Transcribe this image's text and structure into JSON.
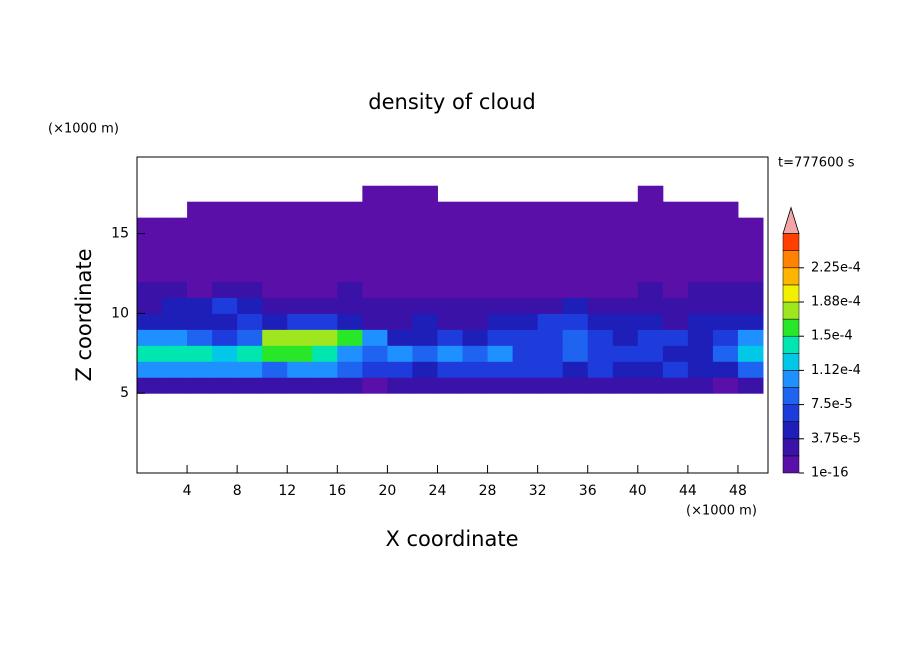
{
  "chart_data": {
    "type": "contour",
    "title": "density of cloud",
    "y_unit": "(×1000 m)",
    "x_unit": "(×1000 m)",
    "time_label": "t=777600 s",
    "xlabel": "X coordinate",
    "ylabel": "Z coordinate",
    "xlim": [
      0,
      50.4
    ],
    "ylim": [
      0,
      19.8
    ],
    "xticks": [
      4,
      8,
      12,
      16,
      20,
      24,
      28,
      32,
      36,
      40,
      44,
      48
    ],
    "yticks": [
      5,
      10,
      15
    ],
    "x": [
      1,
      3,
      5,
      7,
      9,
      11,
      13,
      15,
      17,
      19,
      21,
      23,
      25,
      27,
      29,
      31,
      33,
      35,
      37,
      39,
      41,
      43,
      45,
      47,
      49
    ],
    "y": [
      5.5,
      6.5,
      7.5,
      8.5,
      9.5,
      10.5,
      11.5,
      12.5,
      13.5,
      14.5,
      15.5,
      16.5,
      17.5
    ],
    "z": [
      [
        2.5e-05,
        2.5e-05,
        2.5e-05,
        2.5e-05,
        2.5e-05,
        2.5e-05,
        2.5e-05,
        2.5e-05,
        2.5e-05,
        1e-05,
        2.5e-05,
        2.5e-05,
        2.5e-05,
        2.5e-05,
        2.5e-05,
        2.5e-05,
        2.5e-05,
        2.5e-05,
        2.5e-05,
        2.5e-05,
        2.5e-05,
        2.5e-05,
        2.5e-05,
        1e-05,
        2.5e-05
      ],
      [
        0.0001,
        0.0001,
        0.0001,
        0.0001,
        0.0001,
        8e-05,
        0.0001,
        0.0001,
        8e-05,
        6e-05,
        6e-05,
        4.5e-05,
        6e-05,
        6e-05,
        6e-05,
        6e-05,
        6e-05,
        4.5e-05,
        6e-05,
        4.5e-05,
        4.5e-05,
        6e-05,
        4.5e-05,
        4.5e-05,
        8e-05
      ],
      [
        0.00014,
        0.00014,
        0.00014,
        0.00012,
        0.00014,
        0.00016,
        0.00016,
        0.00014,
        0.0001,
        8e-05,
        0.0001,
        8e-05,
        0.0001,
        8e-05,
        0.0001,
        6e-05,
        6e-05,
        8e-05,
        6e-05,
        6e-05,
        6e-05,
        4.5e-05,
        4.5e-05,
        8e-05,
        0.00012
      ],
      [
        0.0001,
        0.0001,
        8e-05,
        6e-05,
        8e-05,
        0.00017,
        0.00017,
        0.00017,
        0.00016,
        0.0001,
        4.5e-05,
        4.5e-05,
        6e-05,
        4.5e-05,
        6e-05,
        6e-05,
        6e-05,
        8e-05,
        6e-05,
        4.5e-05,
        6e-05,
        6e-05,
        4.5e-05,
        6e-05,
        0.0001
      ],
      [
        4.5e-05,
        4.5e-05,
        4.5e-05,
        4.5e-05,
        6e-05,
        4.5e-05,
        6e-05,
        6e-05,
        4.5e-05,
        2.5e-05,
        2.5e-05,
        4.5e-05,
        2.5e-05,
        2.5e-05,
        4.5e-05,
        4.5e-05,
        6e-05,
        6e-05,
        4.5e-05,
        4.5e-05,
        4.5e-05,
        2.5e-05,
        4.5e-05,
        4.5e-05,
        4.5e-05
      ],
      [
        2.5e-05,
        4.5e-05,
        4.5e-05,
        6e-05,
        4.5e-05,
        2.5e-05,
        2.5e-05,
        2.5e-05,
        2.5e-05,
        2.5e-05,
        2.5e-05,
        2.5e-05,
        2.5e-05,
        2.5e-05,
        2.5e-05,
        2.5e-05,
        2.5e-05,
        4.5e-05,
        2.5e-05,
        2.5e-05,
        2.5e-05,
        2.5e-05,
        2.5e-05,
        2.5e-05,
        2.5e-05
      ],
      [
        2.5e-05,
        2.5e-05,
        1e-05,
        2.5e-05,
        2.5e-05,
        1e-05,
        1e-05,
        1e-05,
        2.5e-05,
        1e-05,
        1e-05,
        1e-05,
        1e-05,
        1e-05,
        1e-05,
        1e-05,
        1e-05,
        1e-05,
        1e-05,
        1e-05,
        2.5e-05,
        1e-05,
        2.5e-05,
        2.5e-05,
        2.5e-05
      ],
      [
        1e-05,
        1e-05,
        1e-05,
        1e-05,
        1e-05,
        1e-05,
        1e-05,
        1e-05,
        1e-05,
        1e-05,
        1e-05,
        1e-05,
        1e-05,
        1e-05,
        1e-05,
        1e-05,
        1e-05,
        1e-05,
        1e-05,
        1e-05,
        1e-05,
        1e-05,
        1e-05,
        1e-05,
        1e-05
      ],
      [
        1e-05,
        1e-05,
        1e-05,
        1e-05,
        1e-05,
        1e-05,
        1e-05,
        1e-05,
        1e-05,
        1e-05,
        1e-05,
        1e-05,
        1e-05,
        1e-05,
        1e-05,
        1e-05,
        1e-05,
        1e-05,
        1e-05,
        1e-05,
        1e-05,
        1e-05,
        1e-05,
        1e-05,
        1e-05
      ],
      [
        1e-05,
        1e-05,
        1e-05,
        1e-05,
        1e-05,
        1e-05,
        1e-05,
        1e-05,
        1e-05,
        1e-05,
        1e-05,
        1e-05,
        1e-05,
        1e-05,
        1e-05,
        1e-05,
        1e-05,
        1e-05,
        1e-05,
        1e-05,
        1e-05,
        1e-05,
        1e-05,
        1e-05,
        1e-05
      ],
      [
        1e-05,
        1e-05,
        1e-05,
        1e-05,
        1e-05,
        1e-05,
        1e-05,
        1e-05,
        1e-05,
        1e-05,
        1e-05,
        1e-05,
        1e-05,
        1e-05,
        1e-05,
        1e-05,
        1e-05,
        1e-05,
        1e-05,
        1e-05,
        1e-05,
        1e-05,
        1e-05,
        1e-05,
        1e-05
      ],
      [
        null,
        null,
        1e-05,
        1e-05,
        1e-05,
        1e-05,
        1e-05,
        1e-05,
        1e-05,
        1e-05,
        1e-05,
        1e-05,
        1e-05,
        1e-05,
        1e-05,
        1e-05,
        1e-05,
        1e-05,
        1e-05,
        1e-05,
        1e-05,
        1e-05,
        1e-05,
        1e-05,
        null
      ],
      [
        null,
        null,
        null,
        null,
        null,
        null,
        null,
        null,
        null,
        1e-05,
        1e-05,
        1e-05,
        null,
        null,
        null,
        null,
        null,
        null,
        null,
        null,
        1e-05,
        null,
        null,
        null,
        null
      ]
    ],
    "levels": [
      1e-16,
      1.875e-05,
      3.75e-05,
      5.625e-05,
      7.5e-05,
      9.375e-05,
      0.0001125,
      0.00013125,
      0.00015,
      0.00016875,
      0.0001875,
      0.00020625,
      0.000225,
      0.00024375,
      0.0002625
    ],
    "colors": [
      "#5a10a8",
      "#3a12a8",
      "#1e1eb8",
      "#1e3cdc",
      "#1e64f0",
      "#1e90ff",
      "#00c8e6",
      "#00e6b0",
      "#28e628",
      "#a0e61e",
      "#f0f000",
      "#ffb400",
      "#ff8200",
      "#ff4000"
    ],
    "over_color": "#f4a6a6",
    "colorbar_ticks": [
      {
        "value": 1e-16,
        "label": "1e-16"
      },
      {
        "value": 3.75e-05,
        "label": "3.75e-5"
      },
      {
        "value": 7.5e-05,
        "label": "7.5e-5"
      },
      {
        "value": 0.0001125,
        "label": "1.12e-4"
      },
      {
        "value": 0.00015,
        "label": "1.5e-4"
      },
      {
        "value": 0.0001875,
        "label": "1.88e-4"
      },
      {
        "value": 0.000225,
        "label": "2.25e-4"
      }
    ]
  }
}
